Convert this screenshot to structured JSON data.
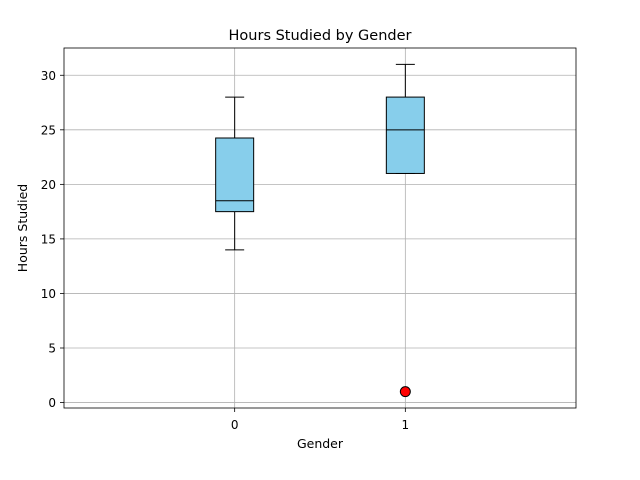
{
  "chart_data": {
    "type": "box",
    "title": "Hours Studied by Gender",
    "xlabel": "Gender",
    "ylabel": "Hours Studied",
    "categories": [
      "0",
      "1"
    ],
    "ylim": [
      -0.5,
      32.5
    ],
    "yticks": [
      0,
      5,
      10,
      15,
      20,
      25,
      30
    ],
    "grid": true,
    "box_color": "#87ceeb",
    "outlier_color": "#ff0000",
    "boxes": [
      {
        "category": "0",
        "whisker_low": 14,
        "q1": 17.5,
        "median": 18.5,
        "q3": 24.25,
        "whisker_high": 28,
        "outliers": []
      },
      {
        "category": "1",
        "whisker_low": 21,
        "q1": 21,
        "median": 25,
        "q3": 28,
        "whisker_high": 31,
        "outliers": [
          1
        ]
      }
    ]
  }
}
